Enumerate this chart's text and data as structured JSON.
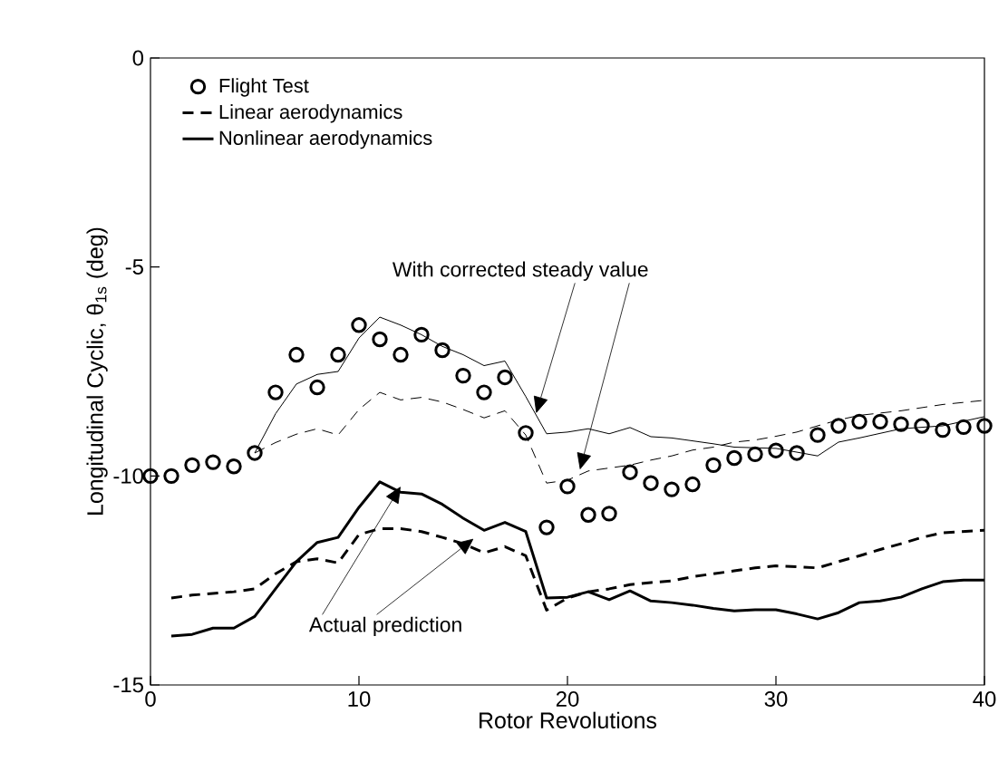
{
  "chart_data": {
    "type": "line",
    "xlabel": "Rotor Revolutions",
    "ylabel": "Longitudinal Cyclic, θ$_{1s}$ (deg)",
    "xlim": [
      0,
      40
    ],
    "ylim": [
      -15,
      0
    ],
    "xticks": [
      0,
      10,
      20,
      30,
      40
    ],
    "yticks": [
      -15,
      -10,
      -5,
      0
    ],
    "legend": "top left",
    "annotations": [
      {
        "text": "With corrected steady value",
        "x": 18.5,
        "y": -8.5
      },
      {
        "text": "Actual prediction",
        "x": 12,
        "y": -10.25
      }
    ],
    "series": [
      {
        "name": "Flight Test",
        "type": "scatter",
        "marker": "circle",
        "color": "#000000",
        "x": [
          0,
          1,
          2,
          3,
          4,
          5,
          6,
          7,
          8,
          9,
          10,
          11,
          12,
          13,
          14,
          15,
          16,
          17,
          18,
          19,
          20,
          21,
          22,
          23,
          24,
          25,
          26,
          27,
          28,
          29,
          30,
          31,
          32,
          33,
          34,
          35,
          36,
          37,
          38,
          39,
          40
        ],
        "values": [
          -10.0,
          -10.0,
          -9.74,
          -9.67,
          -9.77,
          -9.45,
          -8.0,
          -7.1,
          -7.88,
          -7.1,
          -6.39,
          -6.73,
          -7.1,
          -6.62,
          -6.99,
          -7.6,
          -8.0,
          -7.64,
          -8.97,
          -11.23,
          -10.25,
          -10.93,
          -10.9,
          -9.91,
          -10.17,
          -10.32,
          -10.2,
          -9.74,
          -9.57,
          -9.48,
          -9.39,
          -9.45,
          -9.02,
          -8.8,
          -8.7,
          -8.7,
          -8.76,
          -8.8,
          -8.9,
          -8.83,
          -8.8
        ]
      },
      {
        "name": "Linear aerodynamics",
        "line_style": "dashed",
        "color": "#000000",
        "x": [
          1,
          2,
          4,
          5,
          6,
          7,
          8,
          9,
          10,
          11,
          12,
          13,
          14,
          15,
          16,
          17,
          18,
          19,
          20,
          21,
          22,
          23,
          24,
          25,
          26,
          27,
          28,
          29,
          30,
          31,
          32,
          33,
          34,
          35,
          36,
          37,
          38,
          40
        ],
        "values": [
          -12.92,
          -12.85,
          -12.77,
          -12.7,
          -12.34,
          -12.05,
          -11.98,
          -12.08,
          -11.4,
          -11.26,
          -11.26,
          -11.33,
          -11.47,
          -11.62,
          -11.84,
          -11.69,
          -11.91,
          -13.21,
          -12.92,
          -12.77,
          -12.7,
          -12.6,
          -12.55,
          -12.51,
          -12.41,
          -12.34,
          -12.27,
          -12.2,
          -12.15,
          -12.17,
          -12.2,
          -12.05,
          -11.91,
          -11.76,
          -11.62,
          -11.47,
          -11.36,
          -11.3
        ]
      },
      {
        "name": "Nonlinear aerodynamics",
        "line_style": "solid",
        "color": "#000000",
        "x": [
          1,
          2,
          3,
          4,
          5,
          6,
          7,
          8,
          9,
          10,
          11,
          12,
          13,
          14,
          15,
          16,
          17,
          18,
          19,
          20,
          21,
          22,
          23,
          24,
          25,
          26,
          27,
          28,
          29,
          30,
          31,
          32,
          33,
          34,
          35,
          36,
          37,
          38,
          39,
          40
        ],
        "values": [
          -13.83,
          -13.79,
          -13.64,
          -13.64,
          -13.36,
          -12.7,
          -12.05,
          -11.59,
          -11.47,
          -10.75,
          -10.14,
          -10.39,
          -10.43,
          -10.68,
          -11.01,
          -11.3,
          -11.11,
          -11.33,
          -12.92,
          -12.9,
          -12.77,
          -12.96,
          -12.75,
          -12.99,
          -13.03,
          -13.09,
          -13.17,
          -13.23,
          -13.2,
          -13.2,
          -13.3,
          -13.42,
          -13.27,
          -13.03,
          -12.99,
          -12.9,
          -12.7,
          -12.53,
          -12.49,
          -12.49
        ]
      },
      {
        "line_style": "dashed",
        "color": "#000000",
        "x": [
          5,
          6,
          7,
          8,
          9,
          10,
          11,
          12,
          13,
          14,
          15,
          16,
          17,
          18,
          19,
          20,
          21,
          22,
          23,
          24,
          25,
          26,
          27,
          28,
          29,
          30,
          31,
          32,
          33,
          34,
          36,
          38,
          40
        ],
        "values": [
          -9.45,
          -9.2,
          -9.0,
          -8.87,
          -9.02,
          -8.41,
          -8.0,
          -8.18,
          -8.12,
          -8.23,
          -8.41,
          -8.61,
          -8.44,
          -9.02,
          -10.17,
          -10.1,
          -9.88,
          -9.81,
          -9.74,
          -9.62,
          -9.52,
          -9.38,
          -9.31,
          -9.19,
          -9.14,
          -9.05,
          -8.95,
          -8.8,
          -8.66,
          -8.55,
          -8.44,
          -8.29,
          -8.19
        ]
      },
      {
        "line_style": "solid",
        "color": "#000000",
        "x": [
          5,
          6,
          7,
          8,
          9,
          10,
          11,
          12,
          13,
          14,
          15,
          16,
          17,
          18,
          19,
          20,
          21,
          22,
          23,
          24,
          25,
          26,
          27,
          28,
          30,
          32,
          33,
          34,
          36,
          38,
          40
        ],
        "values": [
          -9.45,
          -8.51,
          -7.8,
          -7.57,
          -7.5,
          -6.7,
          -6.2,
          -6.39,
          -6.62,
          -6.9,
          -7.1,
          -7.36,
          -7.25,
          -8.1,
          -8.99,
          -8.95,
          -8.87,
          -8.99,
          -8.84,
          -9.06,
          -9.09,
          -9.16,
          -9.23,
          -9.31,
          -9.34,
          -9.52,
          -9.19,
          -9.09,
          -8.87,
          -8.8,
          -8.58
        ]
      }
    ]
  }
}
